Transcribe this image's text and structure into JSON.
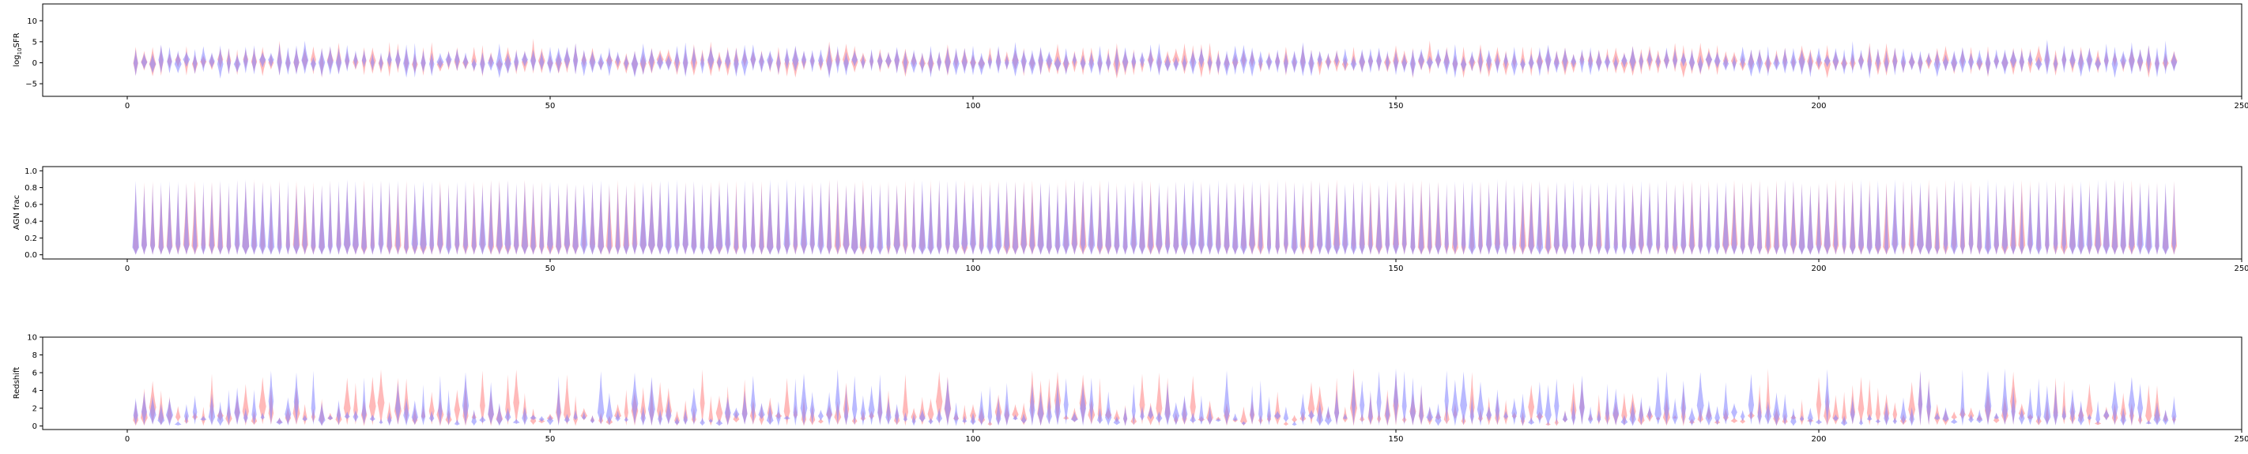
{
  "colors": {
    "series_a": "#ff7f7f",
    "series_b": "#7f7fff",
    "axis": "#000000"
  },
  "chart_data": [
    {
      "type": "violin",
      "ylabel_prefix": "log",
      "ylabel_sub": "10",
      "ylabel_suffix": "SFR",
      "xlim": [
        -10,
        250
      ],
      "ylim": [
        -8,
        14
      ],
      "xticks": [
        0,
        50,
        100,
        150,
        200,
        250
      ],
      "xtick_labels": [
        "0",
        "50",
        "100",
        "150",
        "200",
        "250"
      ],
      "yticks": [
        -5,
        0,
        5,
        10
      ],
      "ytick_labels": [
        "−5",
        "0",
        "5",
        "10"
      ],
      "positions_range": [
        1,
        242
      ],
      "center": 0.2,
      "spread_range": [
        1.5,
        3.5
      ],
      "series": [
        {
          "color": "#ff7f7f"
        },
        {
          "color": "#7f7fff"
        }
      ]
    },
    {
      "type": "violin",
      "ylabel": "AGN frac",
      "xlim": [
        -10,
        250
      ],
      "ylim": [
        -0.05,
        1.05
      ],
      "xticks": [
        0,
        50,
        100,
        150,
        200,
        250
      ],
      "xtick_labels": [
        "0",
        "50",
        "100",
        "150",
        "200",
        "250"
      ],
      "yticks": [
        0.0,
        0.2,
        0.4,
        0.6,
        0.8,
        1.0
      ],
      "ytick_labels": [
        "0.0",
        "0.2",
        "0.4",
        "0.6",
        "0.8",
        "1.0"
      ],
      "positions_range": [
        1,
        242
      ],
      "value_range": [
        0.0,
        0.9
      ],
      "series": [
        {
          "color": "#ff7f7f"
        },
        {
          "color": "#7f7fff"
        }
      ]
    },
    {
      "type": "violin",
      "ylabel": "Redshift",
      "xlim": [
        -10,
        250
      ],
      "ylim": [
        -0.4,
        10
      ],
      "xticks": [
        0,
        50,
        100,
        150,
        200,
        250
      ],
      "xtick_labels": [
        "0",
        "50",
        "100",
        "150",
        "200",
        "250"
      ],
      "yticks": [
        0,
        2,
        4,
        6,
        8,
        10
      ],
      "ytick_labels": [
        "0",
        "2",
        "4",
        "6",
        "8",
        "10"
      ],
      "positions_range": [
        1,
        242
      ],
      "value_range": [
        0.0,
        7.0
      ],
      "series": [
        {
          "color": "#ff7f7f"
        },
        {
          "color": "#7f7fff"
        }
      ]
    }
  ]
}
